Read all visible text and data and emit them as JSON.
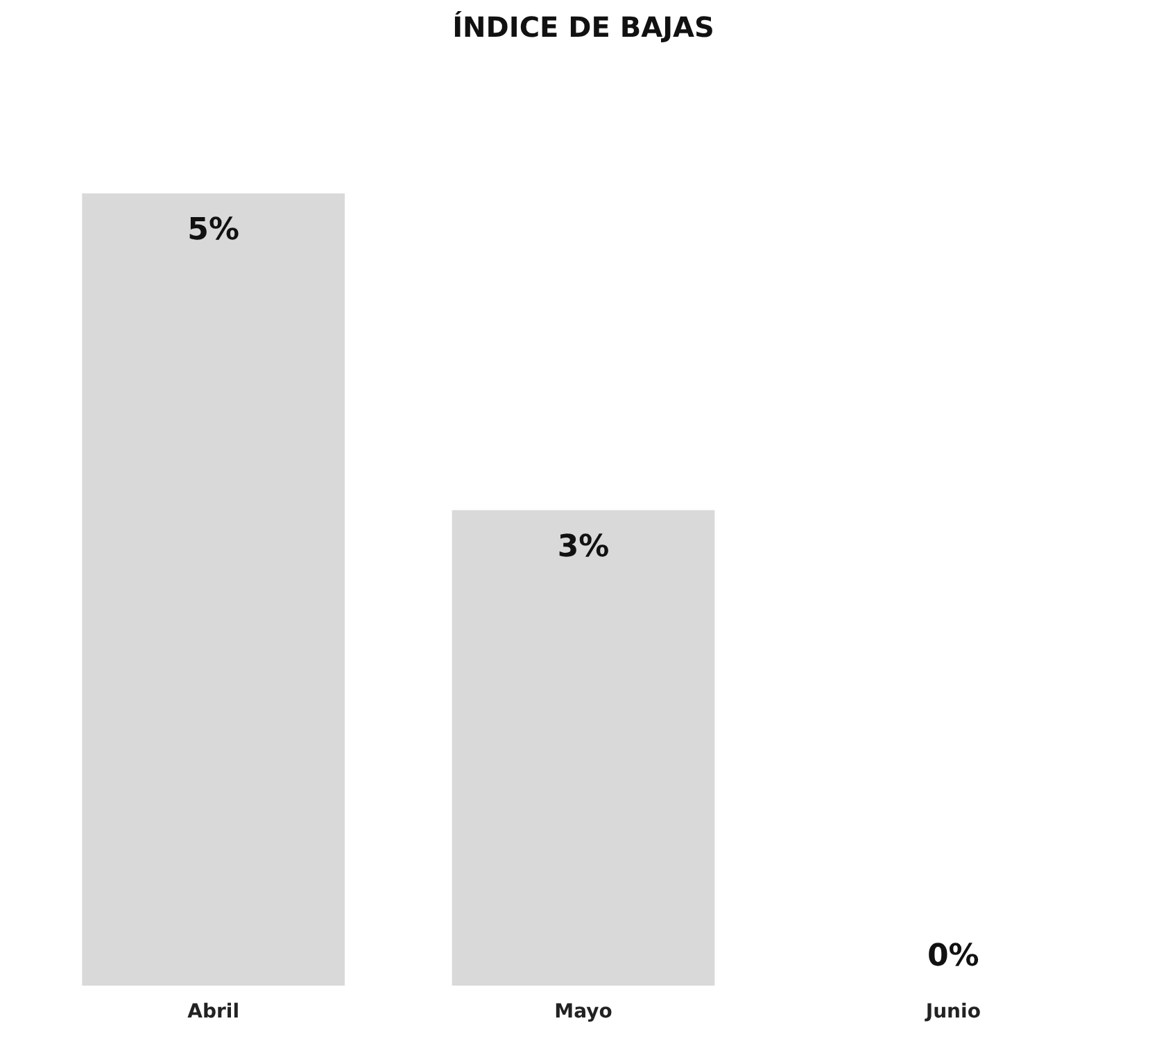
{
  "chart_data": {
    "type": "bar",
    "title": "ÍNDICE DE BAJAS",
    "categories": [
      "Abril",
      "Mayo",
      "Junio"
    ],
    "values": [
      5,
      3,
      0
    ],
    "color": "#d9d9d9",
    "value_labels": [
      "5%",
      "3%",
      "0%"
    ]
  }
}
